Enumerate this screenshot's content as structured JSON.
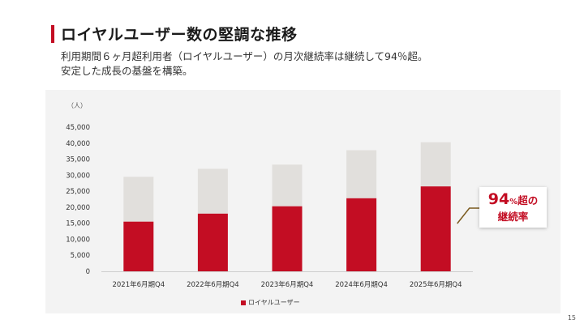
{
  "header": {
    "title": "ロイヤルユーザー数の堅調な推移",
    "subtitle_line1": "利用期間６ヶ月超利用者（ロイヤルユーザー）の月次継続率は継続して94％超。",
    "subtitle_line2": "安定した成長の基盤を構築。"
  },
  "callout": {
    "number": "94",
    "percent": "%",
    "tail": "超の",
    "line2": "継続率"
  },
  "page_number": "15",
  "colors": {
    "accent": "#c30d23",
    "total_bar": "#e1dfdc",
    "callout_line": "#7a5a1e"
  },
  "chart_data": {
    "type": "bar",
    "stacked": true,
    "unit_label": "（人）",
    "categories": [
      "2021年6月期Q4",
      "2022年6月期Q4",
      "2023年6月期Q4",
      "2024年6月期Q4",
      "2025年6月期Q4"
    ],
    "series": [
      {
        "name": "ロイヤルユーザー",
        "values": [
          15500,
          18000,
          20300,
          22800,
          26500
        ]
      },
      {
        "values": [
          14000,
          14000,
          13000,
          15000,
          13800
        ]
      }
    ],
    "ylim": [
      0,
      45000
    ],
    "yticks": [
      "0",
      "5,000",
      "10,000",
      "15,000",
      "20,000",
      "25,000",
      "30,000",
      "35,000",
      "40,000",
      "45,000"
    ],
    "legend_position": "bottom",
    "grid": false
  }
}
